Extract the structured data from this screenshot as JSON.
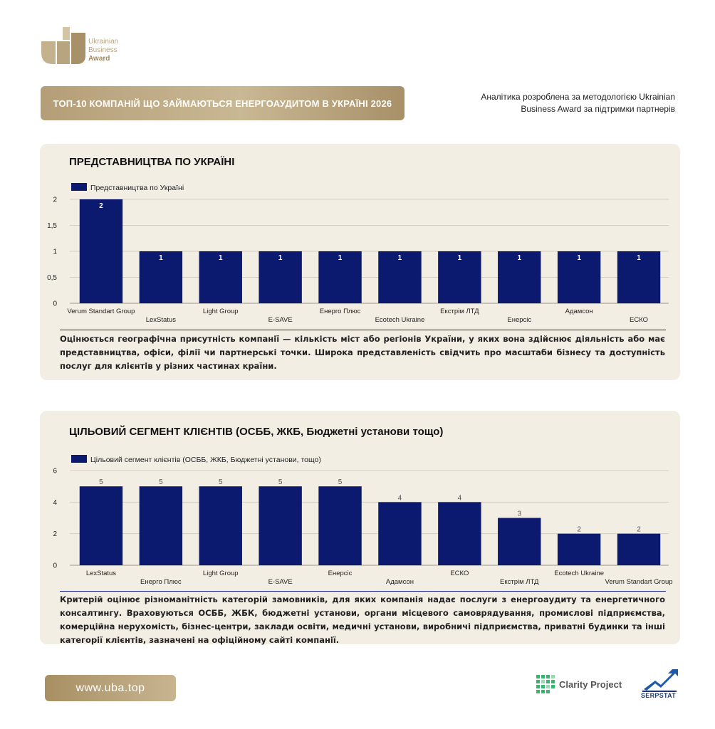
{
  "brand": {
    "logo_line1": "Ukrainian",
    "logo_line2": "Business",
    "logo_line3": "Award",
    "gold": "#b49e77"
  },
  "header": {
    "title": "ТОП-10 КОМПАНІЙ ЩО ЗАЙМАЮТЬСЯ ЕНЕРГОАУДИТОМ В УКРАЇНІ 2026",
    "note_line1": "Аналітика розроблена за методологією Ukrainian",
    "note_line2": "Business Award за підтримки партнерів"
  },
  "panel1": {
    "title": "ПРЕДСТАВНИЦТВА ПО УКРАЇНІ",
    "description": "Оцінюється географічна присутність компанії — кількість міст або регіонів України, у яких вона здійснює діяльність або має представництва, офіси, філії чи партнерські точки. Широка представленість свідчить про масштаби бізнесу та доступність послуг для клієнтів у різних частинах країни."
  },
  "panel2": {
    "title": "ЦІЛЬОВИЙ СЕГМЕНТ КЛІЄНТІВ (ОСББ, ЖКБ, Бюджетні установи тощо)",
    "description": "Критерій оцінює різноманітність категорій замовників, для яких компанія надає послуги з енергоаудиту та енергетичного консалтингу. Враховуються ОСББ, ЖБК, бюджетні установи, органи місцевого самоврядування, промислові підприємства, комерційна нерухомість, бізнес-центри, заклади освіти, медичні установи, виробничі підприємства, приватні будинки та інші категорії клієнтів, зазначені на офіційному сайті компанії."
  },
  "chart_data": [
    {
      "type": "bar",
      "legend_position": "top-left",
      "bar_color": "#0b1a6e",
      "ylim": [
        0,
        2
      ],
      "yticks": [
        "0",
        "0,5",
        "1",
        "1,5",
        "2"
      ],
      "ytick_values": [
        0,
        0.5,
        1,
        1.5,
        2
      ],
      "grid": true,
      "series": [
        {
          "name": "Представництва по Україні",
          "values": [
            2,
            1,
            1,
            1,
            1,
            1,
            1,
            1,
            1,
            1
          ]
        }
      ],
      "categories": [
        "Verum Standart Group",
        "LexStatus",
        "Light Group",
        "E-SAVE",
        "Енерго Плюс",
        "Ecotech Ukraine",
        "Екстрім ЛТД",
        "Енерсіс",
        "Адамсон",
        "ЕСКО"
      ],
      "value_labels": [
        "2",
        "1",
        "1",
        "1",
        "1",
        "1",
        "1",
        "1",
        "1",
        "1"
      ],
      "label_style": "inside"
    },
    {
      "type": "bar",
      "legend_position": "top-left",
      "bar_color": "#0b1a6e",
      "ylim": [
        0,
        6
      ],
      "yticks": [
        "0",
        "2",
        "4",
        "6"
      ],
      "ytick_values": [
        0,
        2,
        4,
        6
      ],
      "grid": true,
      "series": [
        {
          "name": "Цільовий сегмент клієнтів (ОСББ, ЖКБ, Бюджетні установи, тощо)",
          "values": [
            5,
            5,
            5,
            5,
            5,
            4,
            4,
            3,
            2,
            2
          ]
        }
      ],
      "categories": [
        "LexStatus",
        "Енерго Плюс",
        "Light Group",
        "E-SAVE",
        "Енерсіс",
        "Адамсон",
        "ЕСКО",
        "Екстрім ЛТД",
        "Ecotech Ukraine",
        "Verum Standart Group"
      ],
      "value_labels": [
        "5",
        "5",
        "5",
        "5",
        "5",
        "4",
        "4",
        "3",
        "2",
        "2"
      ],
      "label_style": "above"
    }
  ],
  "footer": {
    "url": "www.uba.top",
    "partner1": "Clarity Project",
    "partner2": "SERPSTAT"
  }
}
